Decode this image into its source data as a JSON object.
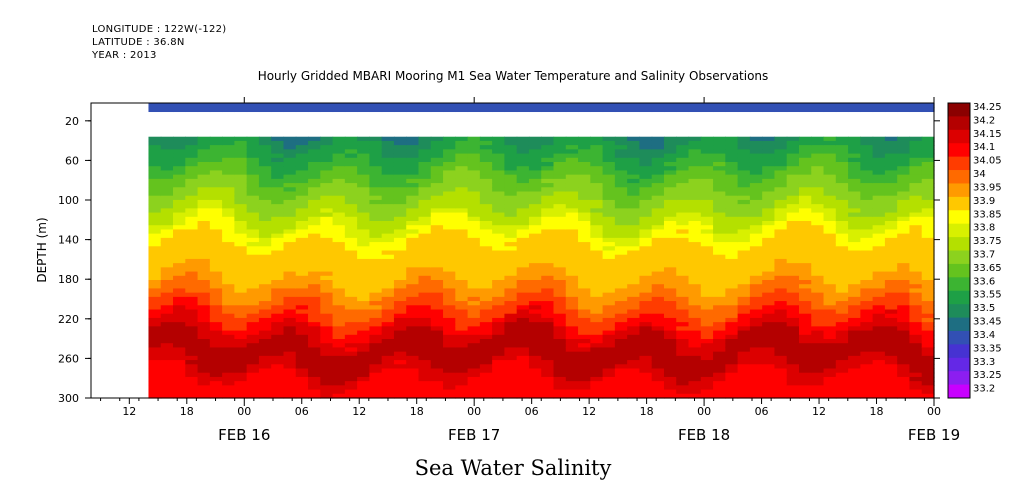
{
  "header": {
    "longitude": "LONGITUDE : 122W(-122)",
    "latitude": "LATITUDE : 36.8N",
    "year": "YEAR : 2013"
  },
  "chart_data": {
    "type": "heatmap",
    "title": "Hourly Gridded MBARI Mooring M1 Sea Water Temperature and Salinity Observations",
    "xlabel": "Sea Water Salinity",
    "ylabel": "DEPTH (m)",
    "ylim": [
      300,
      2
    ],
    "y_ticks": [
      20,
      60,
      100,
      140,
      180,
      220,
      260,
      300
    ],
    "x_range": [
      "FEB 16 08:00",
      "FEB 20 00:00"
    ],
    "x_hour_ticks": [
      "12",
      "18",
      "00",
      "06",
      "12",
      "18",
      "00",
      "06",
      "12",
      "18",
      "00",
      "06",
      "12",
      "18",
      "00"
    ],
    "x_day_labels": [
      "FEB 16",
      "FEB 17",
      "FEB 18",
      "FEB 19"
    ],
    "data_start": "FEB 16 14:00",
    "no_data_depth_range_m": [
      12,
      34
    ],
    "colorbar": {
      "levels": [
        "34.25",
        "34.2",
        "34.15",
        "34.1",
        "34.05",
        "34",
        "33.95",
        "33.9",
        "33.85",
        "33.8",
        "33.75",
        "33.7",
        "33.65",
        "33.6",
        "33.55",
        "33.5",
        "33.45",
        "33.4",
        "33.35",
        "33.3",
        "33.25",
        "33.2"
      ],
      "colors": [
        "#8b0000",
        "#b40000",
        "#dc0000",
        "#ff0000",
        "#ff3c00",
        "#ff6a00",
        "#ff9a00",
        "#ffc800",
        "#ffff00",
        "#d8f000",
        "#b4e000",
        "#8cd21e",
        "#64c31e",
        "#3cb432",
        "#1ea046",
        "#1e8c5a",
        "#1e6e82",
        "#3250b4",
        "#4632d2",
        "#6428e6",
        "#8c1ef0",
        "#c800ff"
      ]
    },
    "profile": [
      {
        "depth": 2,
        "salinity": 33.42
      },
      {
        "depth": 10,
        "salinity": 33.43
      },
      {
        "depth": 35,
        "salinity": 33.53
      },
      {
        "depth": 60,
        "salinity": 33.6
      },
      {
        "depth": 80,
        "salinity": 33.68
      },
      {
        "depth": 100,
        "salinity": 33.73
      },
      {
        "depth": 120,
        "salinity": 33.8
      },
      {
        "depth": 135,
        "salinity": 33.88
      },
      {
        "depth": 150,
        "salinity": 33.92
      },
      {
        "depth": 180,
        "salinity": 33.95
      },
      {
        "depth": 200,
        "salinity": 34.02
      },
      {
        "depth": 220,
        "salinity": 34.1
      },
      {
        "depth": 240,
        "salinity": 34.2
      },
      {
        "depth": 255,
        "salinity": 34.25
      },
      {
        "depth": 270,
        "salinity": 34.19
      },
      {
        "depth": 285,
        "salinity": 34.12
      },
      {
        "depth": 300,
        "salinity": 34.1
      }
    ]
  }
}
